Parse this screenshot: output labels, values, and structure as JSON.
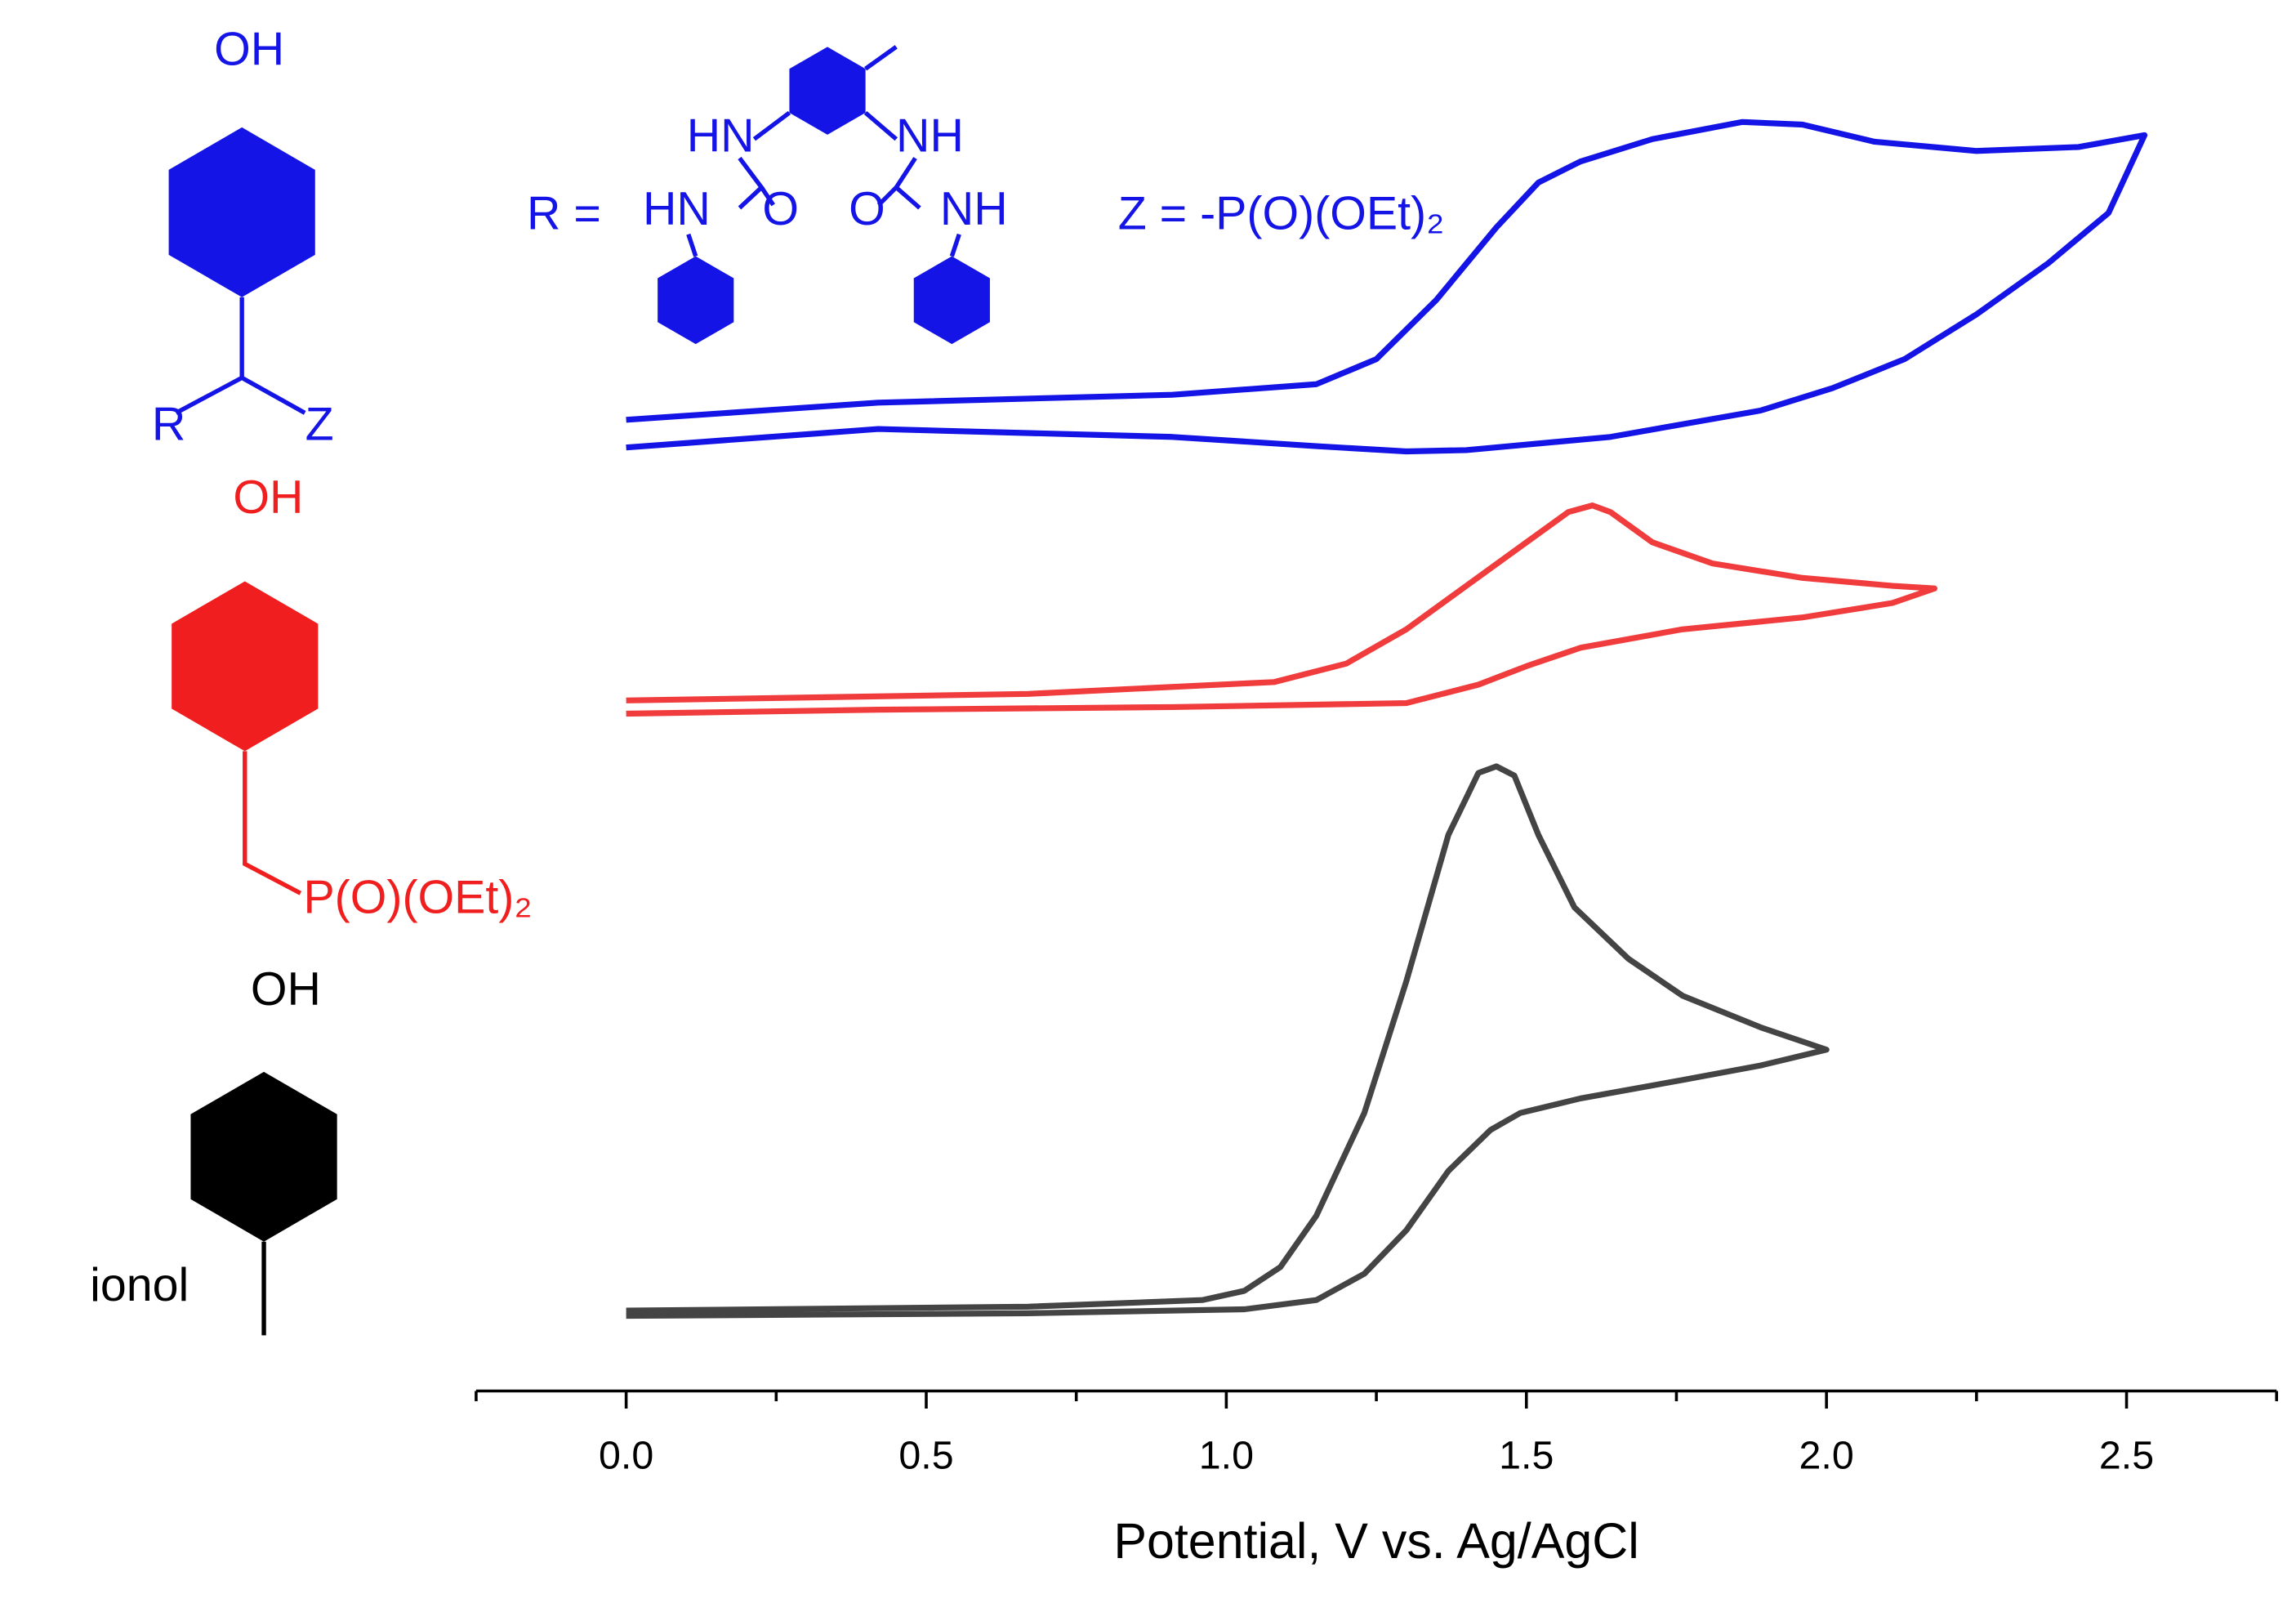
{
  "chart_data": {
    "type": "line",
    "x_label": "Potential, V vs. Ag/AgCl",
    "xlim": [
      -0.25,
      2.75
    ],
    "ylim": [
      0,
      100
    ],
    "xticks": [
      {
        "value": 0,
        "label": "0.0"
      },
      0.5,
      {
        "value": 1,
        "label": "1.0"
      },
      1.5,
      {
        "value": 2,
        "label": "2.0"
      },
      2.5
    ],
    "xminorticks": [
      -0.25,
      0.25,
      0.75,
      1.25,
      1.75,
      2.25,
      2.75
    ],
    "series": [
      {
        "color": "#1414e6",
        "x": [
          0.0,
          0.42,
          0.91,
          1.15,
          1.25,
          1.35,
          1.45,
          1.52,
          1.59,
          1.71,
          1.86,
          1.96,
          2.08,
          2.25,
          2.42,
          2.53,
          2.47,
          2.37,
          2.25,
          2.13,
          2.01,
          1.89,
          1.64,
          1.4,
          1.3,
          1.15,
          0.91,
          0.42,
          0.0
        ],
        "values": [
          73.7,
          75.0,
          75.6,
          76.4,
          78.3,
          82.8,
          88.3,
          91.7,
          93.3,
          95.0,
          96.3,
          96.1,
          94.8,
          94.1,
          94.4,
          95.3,
          89.4,
          85.6,
          81.7,
          78.3,
          76.1,
          74.4,
          72.4,
          71.4,
          71.3,
          71.7,
          72.4,
          73.0,
          71.6
        ]
      },
      {
        "color": "#f03c3c",
        "x": [
          0.0,
          0.67,
          1.08,
          1.2,
          1.3,
          1.4,
          1.5,
          1.57,
          1.61,
          1.64,
          1.71,
          1.81,
          1.96,
          2.11,
          2.18,
          2.11,
          1.96,
          1.76,
          1.59,
          1.5,
          1.42,
          1.3,
          0.91,
          0.42,
          0.0
        ],
        "values": [
          52.4,
          52.9,
          53.8,
          55.2,
          57.8,
          61.1,
          64.4,
          66.7,
          67.2,
          66.7,
          64.4,
          62.8,
          61.7,
          61.1,
          60.9,
          59.8,
          58.7,
          57.8,
          56.4,
          55.0,
          53.6,
          52.2,
          51.9,
          51.7,
          51.4
        ]
      },
      {
        "color": "#444444",
        "x": [
          0.0,
          0.67,
          0.96,
          1.03,
          1.09,
          1.15,
          1.23,
          1.3,
          1.37,
          1.42,
          1.45,
          1.48,
          1.52,
          1.58,
          1.67,
          1.76,
          1.89,
          2.0,
          1.89,
          1.76,
          1.59,
          1.49,
          1.44,
          1.37,
          1.3,
          1.23,
          1.15,
          1.03,
          0.67,
          0.0
        ],
        "values": [
          6.1,
          6.4,
          6.9,
          7.6,
          9.4,
          13.3,
          21.1,
          31.1,
          42.2,
          46.9,
          47.4,
          46.7,
          42.2,
          36.7,
          32.8,
          30.0,
          27.6,
          25.9,
          24.7,
          23.6,
          22.2,
          21.1,
          19.8,
          16.7,
          12.2,
          8.9,
          6.9,
          6.2,
          5.9,
          5.7
        ]
      }
    ],
    "annotations": [
      "OH",
      "R",
      "Z",
      "R =",
      "HN",
      "NH",
      "HN",
      "O",
      "O",
      "NH",
      "Z = -P(O)(OEt)₂",
      "OH",
      "P(O)(OEt)₂",
      "OH",
      "ionol"
    ]
  }
}
